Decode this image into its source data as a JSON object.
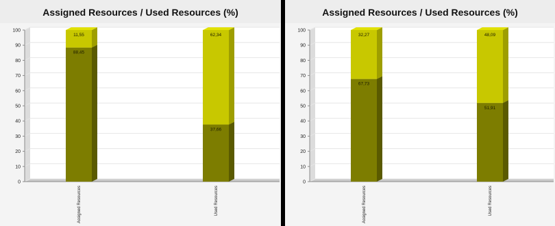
{
  "colors": {
    "assigned": "#7d7d00",
    "assigned_dark": "#5a5a00",
    "assigned_top": "#8f8f10",
    "used": "#c8c800",
    "used_dark": "#9e9e00",
    "used_top": "#e0e000",
    "grid": "#e6e6e6",
    "axis": "#8a8a8a",
    "floor": "#c9c9c9"
  },
  "chart_data": [
    {
      "type": "bar",
      "stacked": true,
      "title": "Assigned Resources / Used Resources (%)",
      "categories": [
        "Assigned Resources",
        "Used Resources"
      ],
      "ylim": [
        0,
        100
      ],
      "yticks": [
        "0",
        "10",
        "20",
        "30",
        "40",
        "50",
        "60",
        "70",
        "80",
        "90",
        "100"
      ],
      "series": [
        {
          "values": [
            88.45,
            37.66
          ],
          "labels": [
            "88,45",
            "37,66"
          ]
        },
        {
          "values": [
            11.55,
            62.34
          ],
          "labels": [
            "11,55",
            "62,34"
          ]
        }
      ],
      "grid": true
    },
    {
      "type": "bar",
      "stacked": true,
      "title": "Assigned Resources / Used Resources (%)",
      "categories": [
        "Assigned Resources",
        "Used Resources"
      ],
      "ylim": [
        0,
        100
      ],
      "yticks": [
        "0",
        "10",
        "20",
        "30",
        "40",
        "50",
        "60",
        "70",
        "80",
        "90",
        "100"
      ],
      "series": [
        {
          "values": [
            67.73,
            51.91
          ],
          "labels": [
            "67,73",
            "51,91"
          ]
        },
        {
          "values": [
            32.27,
            48.09
          ],
          "labels": [
            "32,27",
            "48,09"
          ]
        }
      ],
      "grid": true
    }
  ]
}
